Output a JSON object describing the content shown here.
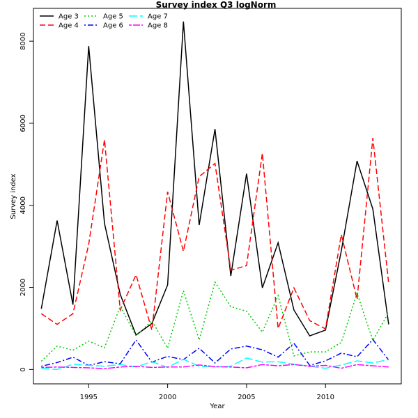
{
  "chart_data": {
    "type": "line",
    "title": "Survey index Q3 logNorm",
    "xlabel": "Year",
    "ylabel": "Survey index",
    "xlim": [
      1991.5,
      2014.8
    ],
    "ylim": [
      -350,
      8800
    ],
    "x_ticks": [
      1995,
      2000,
      2005,
      2010
    ],
    "y_ticks": [
      0,
      2000,
      4000,
      6000,
      8000
    ],
    "grid": false,
    "legend_position": "top-left",
    "x": [
      1992,
      1993,
      1994,
      1995,
      1996,
      1997,
      1998,
      1999,
      2000,
      2001,
      2002,
      2003,
      2004,
      2005,
      2006,
      2007,
      2008,
      2009,
      2010,
      2011,
      2012,
      2013,
      2014
    ],
    "series": [
      {
        "name": "Age 3",
        "color": "#000000",
        "dash": "solid",
        "values": [
          1480,
          3630,
          1580,
          7880,
          3560,
          1830,
          840,
          1120,
          2060,
          8480,
          3520,
          5860,
          2280,
          4770,
          1990,
          3090,
          1450,
          820,
          960,
          2890,
          5080,
          3910,
          1100
        ]
      },
      {
        "name": "Age 4",
        "color": "#ff0000",
        "dash": "dashed",
        "values": [
          1360,
          1100,
          1360,
          3050,
          5600,
          1450,
          2310,
          960,
          4330,
          2880,
          4700,
          5020,
          2420,
          2530,
          5270,
          1000,
          1990,
          1190,
          990,
          3290,
          1710,
          5640,
          2100
        ]
      },
      {
        "name": "Age 5",
        "color": "#00cd00",
        "dash": "dotted",
        "values": [
          200,
          570,
          470,
          690,
          530,
          1540,
          820,
          1190,
          520,
          1920,
          720,
          2130,
          1530,
          1420,
          910,
          1800,
          330,
          430,
          430,
          660,
          1860,
          710,
          1390
        ]
      },
      {
        "name": "Age 6",
        "color": "#0000ff",
        "dash": "dotdash",
        "values": [
          80,
          170,
          300,
          100,
          190,
          140,
          720,
          180,
          320,
          240,
          520,
          160,
          500,
          570,
          480,
          300,
          640,
          100,
          210,
          400,
          310,
          730,
          230
        ]
      },
      {
        "name": "Age 7",
        "color": "#00ffff",
        "dash": "longdash",
        "values": [
          30,
          0,
          130,
          100,
          80,
          120,
          60,
          190,
          50,
          250,
          80,
          60,
          80,
          280,
          180,
          190,
          130,
          80,
          30,
          110,
          210,
          160,
          240
        ]
      },
      {
        "name": "Age 8",
        "color": "#ff00ff",
        "dash": "twodash",
        "values": [
          50,
          60,
          50,
          40,
          20,
          60,
          80,
          50,
          60,
          60,
          110,
          70,
          60,
          40,
          120,
          90,
          120,
          80,
          100,
          30,
          120,
          90,
          60
        ]
      }
    ]
  }
}
